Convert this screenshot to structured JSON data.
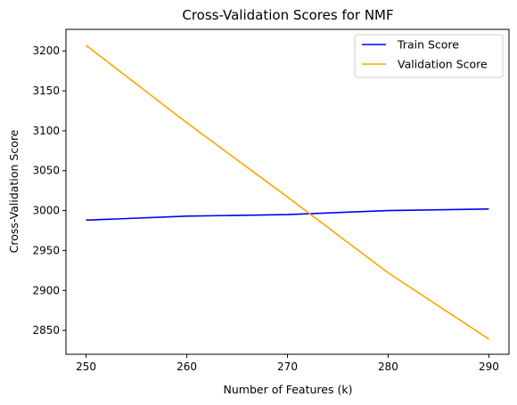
{
  "chart_data": {
    "type": "line",
    "title": "Cross-Validation Scores for NMF",
    "xlabel": "Number of Features (k)",
    "ylabel": "Cross-Validation Score",
    "x": [
      250,
      260,
      270,
      280,
      290
    ],
    "xticks": [
      "250",
      "260",
      "270",
      "280",
      "290"
    ],
    "yticks": [
      "2850",
      "2900",
      "2950",
      "3000",
      "3050",
      "3100",
      "3150",
      "3200"
    ],
    "xlim": [
      248.0,
      292.0
    ],
    "ylim": [
      2820.0,
      3227.0
    ],
    "grid": false,
    "legend_position": "top-right",
    "series": [
      {
        "name": "Train Score",
        "color": "#0000ff",
        "values": [
          2988,
          2993,
          2995,
          3000,
          3002
        ]
      },
      {
        "name": "Validation Score",
        "color": "#ffa500",
        "values": [
          3207,
          3110,
          3017,
          2922,
          2839
        ]
      }
    ]
  }
}
